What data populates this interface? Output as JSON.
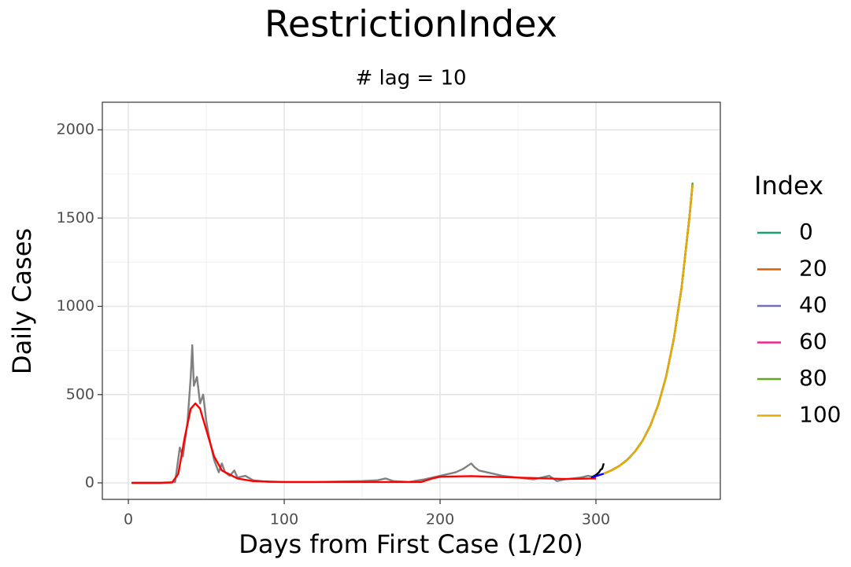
{
  "chart_data": {
    "type": "line",
    "title": "RestrictionIndex",
    "subtitle": "# lag = 10",
    "x_label": "Days from First Case (1/20)",
    "y_label": "Daily Cases",
    "legend_title": "Index",
    "xlim": [
      -16.7,
      379.8
    ],
    "ylim": [
      -93.5,
      2156
    ],
    "xticks": [
      0,
      100,
      200,
      300
    ],
    "yticks": [
      0,
      500,
      1000,
      1500,
      2000
    ],
    "grid": true,
    "legend_position": "right",
    "series": [
      {
        "color": "#808080",
        "x": [
          2,
          10,
          20,
          30,
          33,
          35,
          38,
          40,
          41,
          42,
          44,
          46,
          48,
          50,
          52,
          55,
          58,
          60,
          62,
          65,
          68,
          70,
          75,
          80,
          90,
          100,
          120,
          150,
          160,
          165,
          170,
          180,
          190,
          200,
          210,
          215,
          220,
          222,
          225,
          230,
          240,
          250,
          260,
          270,
          275,
          280,
          290,
          295,
          300
        ],
        "values": [
          0,
          0,
          0,
          5,
          200,
          150,
          350,
          600,
          780,
          550,
          600,
          450,
          500,
          350,
          250,
          130,
          60,
          110,
          60,
          40,
          70,
          30,
          40,
          15,
          5,
          5,
          5,
          10,
          15,
          25,
          10,
          5,
          20,
          40,
          60,
          80,
          110,
          90,
          70,
          60,
          40,
          30,
          20,
          40,
          10,
          20,
          30,
          40,
          30
        ]
      },
      {
        "color": "#ff0000",
        "x": [
          2,
          20,
          28,
          32,
          36,
          40,
          43,
          46,
          50,
          55,
          60,
          70,
          80,
          100,
          150,
          188,
          195,
          200,
          220,
          250,
          280,
          300
        ],
        "values": [
          0,
          0,
          2,
          50,
          250,
          420,
          450,
          420,
          300,
          150,
          70,
          25,
          10,
          5,
          5,
          5,
          25,
          35,
          38,
          30,
          22,
          25
        ]
      },
      {
        "color": "#000000",
        "x": [
          297,
          300,
          302,
          303,
          304,
          305
        ],
        "values": [
          30,
          45,
          60,
          75,
          80,
          110
        ]
      },
      {
        "color": "#0000ff",
        "x": [
          297,
          305
        ],
        "values": [
          30,
          52
        ]
      },
      {
        "name": "0",
        "color": "#1b9e77",
        "x": [
          305,
          310,
          315,
          320,
          325,
          330,
          335,
          340,
          345,
          350,
          355,
          360,
          362
        ],
        "values": [
          52,
          71,
          96,
          130,
          177,
          240,
          326,
          443,
          601,
          817,
          1109,
          1506,
          1700
        ]
      },
      {
        "name": "20",
        "color": "#d95f02",
        "x": [
          305,
          310,
          315,
          320,
          325,
          330,
          335,
          340,
          345,
          350,
          355,
          360,
          362
        ],
        "values": [
          52,
          71,
          96,
          130,
          177,
          240,
          326,
          443,
          601,
          817,
          1109,
          1506,
          1690
        ]
      },
      {
        "name": "40",
        "color": "#7570b3",
        "x": [
          305,
          310,
          315,
          320,
          325,
          330,
          335,
          340,
          345,
          350,
          355,
          360,
          362
        ],
        "values": [
          52,
          71,
          96,
          130,
          177,
          240,
          326,
          443,
          601,
          817,
          1109,
          1506,
          1690
        ]
      },
      {
        "name": "60",
        "color": "#e7298a",
        "x": [
          305,
          310,
          315,
          320,
          325,
          330,
          335,
          340,
          345,
          350,
          355,
          360,
          362
        ],
        "values": [
          52,
          71,
          96,
          130,
          177,
          240,
          326,
          443,
          601,
          817,
          1109,
          1506,
          1690
        ]
      },
      {
        "name": "80",
        "color": "#66a61e",
        "x": [
          305,
          310,
          315,
          320,
          325,
          330,
          335,
          340,
          345,
          350,
          355,
          360,
          362
        ],
        "values": [
          52,
          71,
          96,
          130,
          177,
          240,
          326,
          443,
          601,
          817,
          1109,
          1506,
          1690
        ]
      },
      {
        "name": "100",
        "color": "#e6ab02",
        "x": [
          305,
          310,
          315,
          320,
          325,
          330,
          335,
          340,
          345,
          350,
          355,
          360,
          362
        ],
        "values": [
          52,
          71,
          96,
          130,
          177,
          240,
          326,
          443,
          601,
          817,
          1109,
          1506,
          1690
        ]
      }
    ]
  }
}
